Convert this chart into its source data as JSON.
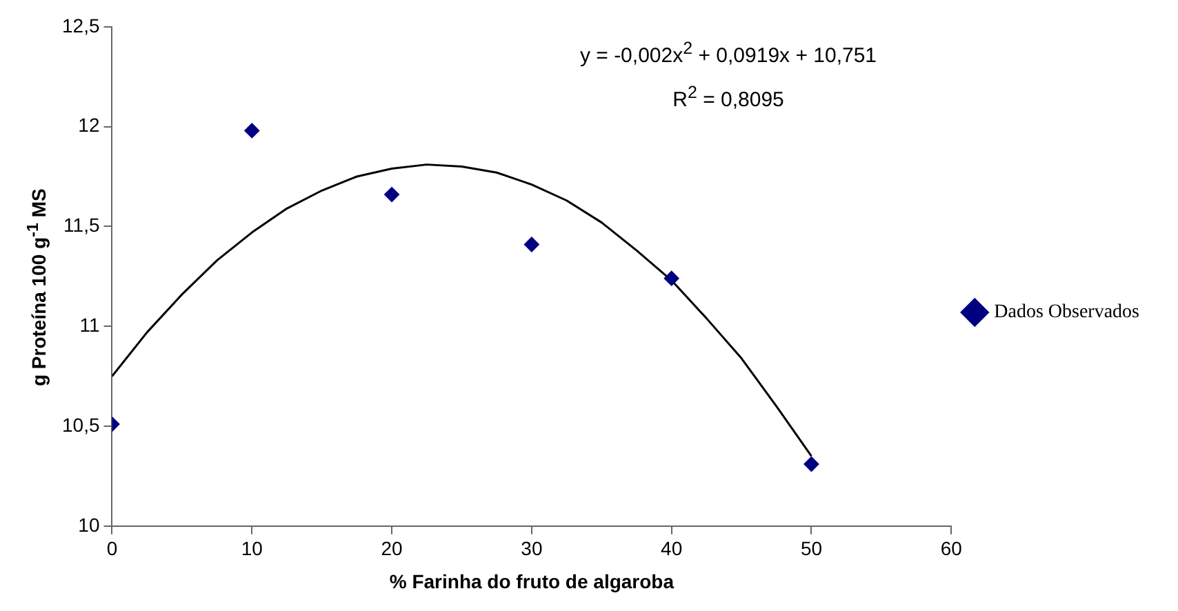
{
  "chart_data": {
    "type": "scatter",
    "xlabel": "% Farinha do fruto de algaroba",
    "ylabel": "g Proteína 100 g$^{-1}$ MS",
    "xlim": [
      0,
      60
    ],
    "xticks": [
      0,
      10,
      20,
      30,
      40,
      50,
      60
    ],
    "ylim": [
      10,
      12.5
    ],
    "yticks": [
      10,
      {
        "value": 10.5,
        "label": "10,5"
      },
      11,
      {
        "value": 11.5,
        "label": "11,5"
      },
      12,
      {
        "value": 12.5,
        "label": "12,5"
      }
    ],
    "grid": false,
    "legend": "right",
    "marker": "diamond",
    "series": [
      {
        "name": "Dados Observados",
        "color": "#000080",
        "x": [
          0,
          10,
          20,
          30,
          40,
          50
        ],
        "values": [
          10.51,
          11.98,
          11.66,
          11.41,
          11.24,
          10.31
        ]
      },
      {
        "type": "line",
        "color": "#000000",
        "marker": "none",
        "x": [
          0,
          2.5,
          5,
          7.5,
          10,
          12.5,
          15,
          17.5,
          20,
          22.5,
          25,
          27.5,
          30,
          32.5,
          35,
          37.5,
          40,
          42.5,
          45,
          47.5,
          50
        ],
        "values": [
          10.75,
          10.97,
          11.16,
          11.33,
          11.47,
          11.59,
          11.68,
          11.75,
          11.79,
          11.81,
          11.8,
          11.77,
          11.71,
          11.63,
          11.52,
          11.38,
          11.23,
          11.04,
          10.84,
          10.6,
          10.35
        ]
      }
    ],
    "annotations": [
      "y = -0,002x$^{2}$ + 0,0919x + 10,751",
      "R$^{2}$ = 0,8095"
    ]
  }
}
